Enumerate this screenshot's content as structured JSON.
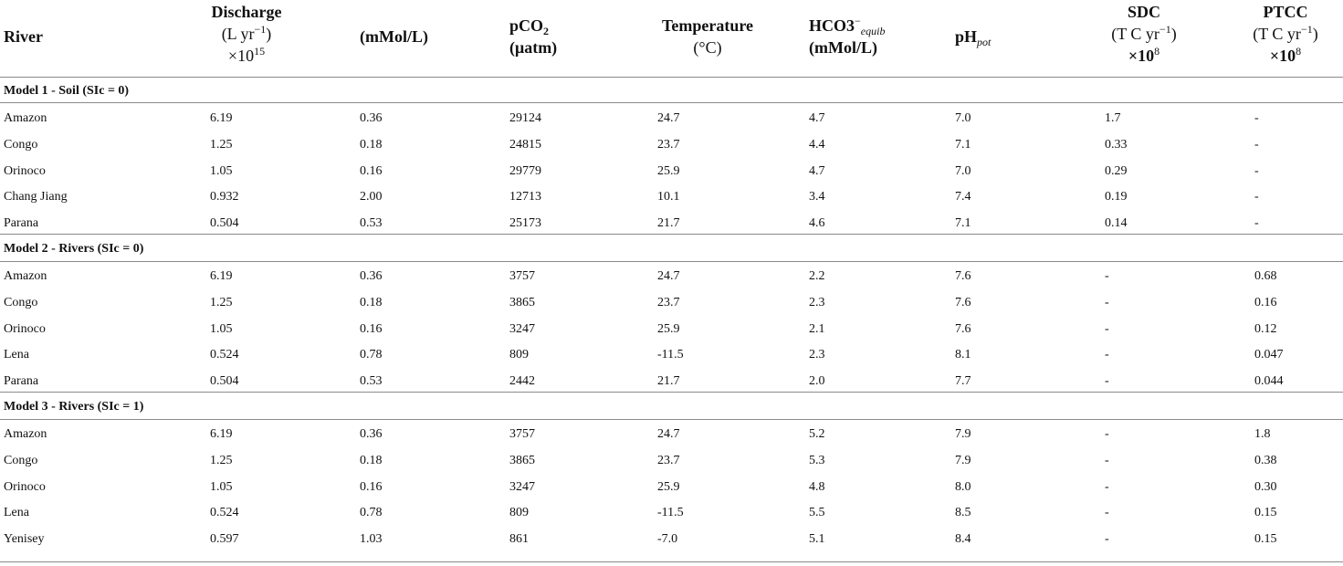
{
  "headers": {
    "river": "River",
    "discharge": {
      "line1": "Discharge",
      "line2": "(L yr",
      "exp2": "−1",
      "line2b": ")",
      "line3": "×10",
      "exp3": "15"
    },
    "conc": "(mMol/L)",
    "pco2": {
      "line1": "pCO",
      "sub1": "2",
      "line2": "(μatm)"
    },
    "temperature": {
      "line1": "Temperature",
      "line2": "(°C)"
    },
    "hco3": {
      "line1": "HCO3",
      "sup1": "−",
      "sub1": "equib",
      "line2": "(mMol/L)"
    },
    "ph": {
      "main": "pH",
      "sub": "pot"
    },
    "sdc": {
      "line1": "SDC",
      "line2": "(T C yr",
      "exp2": "−1",
      "line2b": ")",
      "line3": "×10",
      "exp3": "8"
    },
    "ptcc": {
      "line1": "PTCC",
      "line2": "(T C yr",
      "exp2": "−1",
      "line2b": ")",
      "line3": "×10",
      "exp3": "8"
    }
  },
  "sections": [
    {
      "title": "Model 1 - Soil (SIc = 0)",
      "rows": [
        [
          "Amazon",
          "6.19",
          "0.36",
          "29124",
          "24.7",
          "4.7",
          "7.0",
          "1.7",
          "-"
        ],
        [
          "Congo",
          "1.25",
          "0.18",
          "24815",
          "23.7",
          "4.4",
          "7.1",
          "0.33",
          "-"
        ],
        [
          "Orinoco",
          "1.05",
          "0.16",
          "29779",
          "25.9",
          "4.7",
          "7.0",
          "0.29",
          "-"
        ],
        [
          "Chang Jiang",
          "0.932",
          "2.00",
          "12713",
          "10.1",
          "3.4",
          "7.4",
          "0.19",
          "-"
        ],
        [
          "Parana",
          "0.504",
          "0.53",
          "25173",
          "21.7",
          "4.6",
          "7.1",
          "0.14",
          "-"
        ]
      ]
    },
    {
      "title": "Model 2 - Rivers (SIc = 0)",
      "rows": [
        [
          "Amazon",
          "6.19",
          "0.36",
          "3757",
          "24.7",
          "2.2",
          "7.6",
          "-",
          "0.68"
        ],
        [
          "Congo",
          "1.25",
          "0.18",
          "3865",
          "23.7",
          "2.3",
          "7.6",
          "-",
          "0.16"
        ],
        [
          "Orinoco",
          "1.05",
          "0.16",
          "3247",
          "25.9",
          "2.1",
          "7.6",
          "-",
          "0.12"
        ],
        [
          "Lena",
          "0.524",
          "0.78",
          "809",
          "-11.5",
          "2.3",
          "8.1",
          "-",
          "0.047"
        ],
        [
          "Parana",
          "0.504",
          "0.53",
          "2442",
          "21.7",
          "2.0",
          "7.7",
          "-",
          "0.044"
        ]
      ]
    },
    {
      "title": "Model 3 - Rivers (SIc = 1)",
      "rows": [
        [
          "Amazon",
          "6.19",
          "0.36",
          "3757",
          "24.7",
          "5.2",
          "7.9",
          "-",
          "1.8"
        ],
        [
          "Congo",
          "1.25",
          "0.18",
          "3865",
          "23.7",
          "5.3",
          "7.9",
          "-",
          "0.38"
        ],
        [
          "Orinoco",
          "1.05",
          "0.16",
          "3247",
          "25.9",
          "4.8",
          "8.0",
          "-",
          "0.30"
        ],
        [
          "Lena",
          "0.524",
          "0.78",
          "809",
          "-11.5",
          "5.5",
          "8.5",
          "-",
          "0.15"
        ],
        [
          "Yenisey",
          "0.597",
          "1.03",
          "861",
          "-7.0",
          "5.1",
          "8.4",
          "-",
          "0.15"
        ]
      ]
    }
  ]
}
